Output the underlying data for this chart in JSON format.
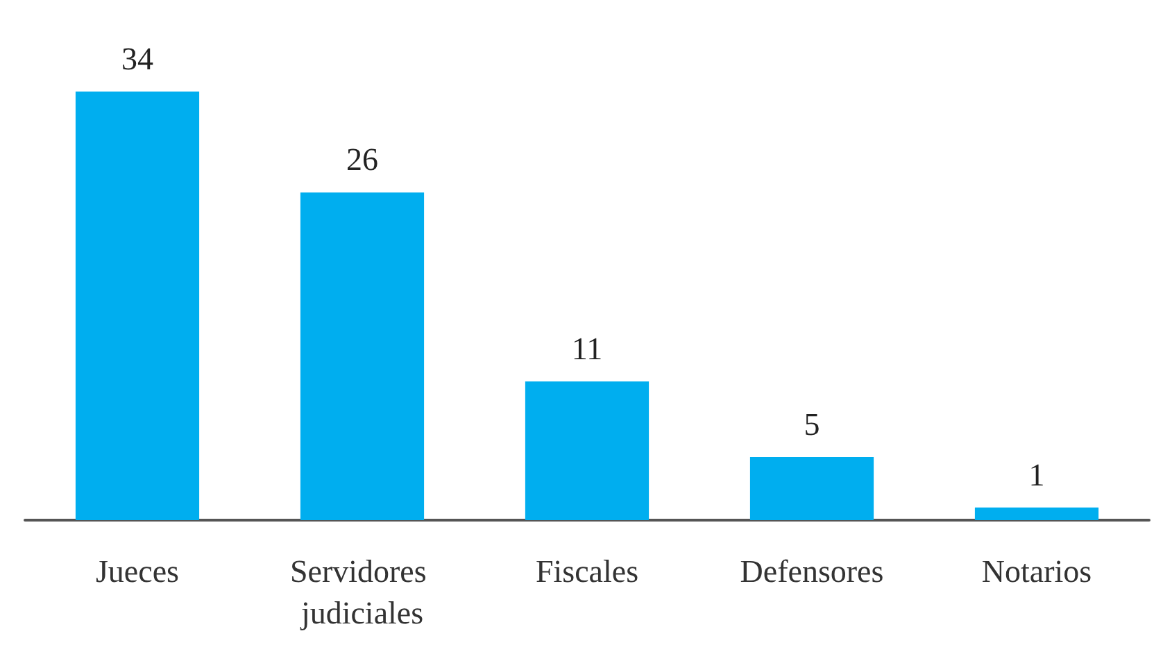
{
  "chart_data": {
    "type": "bar",
    "categories": [
      "Jueces",
      "Servidores judiciales",
      "Fiscales",
      "Defensores",
      "Notarios"
    ],
    "values": [
      34,
      26,
      11,
      5,
      1
    ],
    "color": "#00aeef",
    "data_labels": true
  }
}
